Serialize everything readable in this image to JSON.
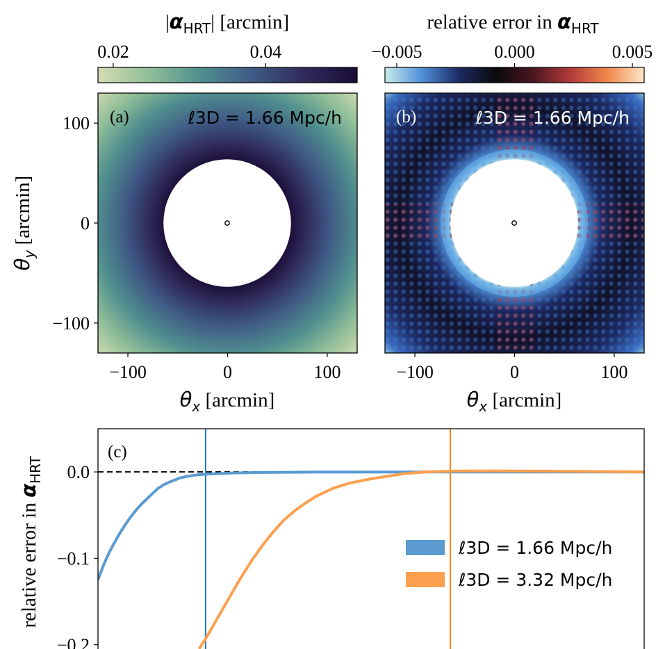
{
  "chart_data": [
    {
      "type": "heatmap",
      "panel_label": "(a)",
      "annotation": "ℓ3D = 1.66 Mpc/h",
      "colorbar": {
        "label_prefix": "|",
        "label_symbol": "α",
        "label_sub": "HRT",
        "label_suffix": "| [arcmin]",
        "ticks": [
          "0.02",
          "0.04"
        ],
        "tick_values": [
          0.02,
          0.04
        ],
        "range": [
          0.018,
          0.052
        ],
        "colors": [
          "#d5dcb2",
          "#8fbe98",
          "#4f8e8e",
          "#3f5a85",
          "#2f2a5a",
          "#1a0d36"
        ]
      },
      "xlabel_symbol": "θ",
      "xlabel_sub": "x",
      "xlabel_unit": "[arcmin]",
      "ylabel_symbol": "θ",
      "ylabel_sub": "y",
      "ylabel_unit": "[arcmin]",
      "xticks": [
        "−100",
        "0",
        "100"
      ],
      "xtick_values": [
        -100,
        0,
        100
      ],
      "yticks": [
        "100",
        "0",
        "−100"
      ],
      "ytick_values": [
        100,
        0,
        -100
      ],
      "xlim": [
        -130,
        130
      ],
      "ylim": [
        -130,
        130
      ],
      "masked_radius_arcmin": 64
    },
    {
      "type": "heatmap",
      "panel_label": "(b)",
      "annotation": "ℓ3D = 1.66 Mpc/h",
      "colorbar": {
        "label": "relative error in",
        "label_symbol": "α",
        "label_sub": "HRT",
        "ticks": [
          "−0.005",
          "0.000",
          "0.005"
        ],
        "tick_values": [
          -0.005,
          0.0,
          0.005
        ],
        "range": [
          -0.0055,
          0.0055
        ],
        "colors": [
          "#c8ecec",
          "#4f8fd8",
          "#1d2a63",
          "#0a0a0a",
          "#4a1620",
          "#b03a3a",
          "#f0874a",
          "#fde6c8"
        ]
      },
      "xlabel_symbol": "θ",
      "xlabel_sub": "x",
      "xlabel_unit": "[arcmin]",
      "xticks": [
        "−100",
        "0",
        "100"
      ],
      "xtick_values": [
        -100,
        0,
        100
      ],
      "xlim": [
        -130,
        130
      ],
      "ylim": [
        -130,
        130
      ],
      "masked_radius_arcmin": 64
    },
    {
      "type": "line",
      "panel_label": "(c)",
      "ylabel_text": "relative error in",
      "ylabel_symbol": "α",
      "ylabel_sub": "HRT",
      "yticks": [
        "0.0",
        "−0.1",
        "−0.2"
      ],
      "ytick_values": [
        0.0,
        -0.1,
        -0.2
      ],
      "ylim": [
        -0.205,
        0.05
      ],
      "xlim": [
        0,
        10
      ],
      "series": [
        {
          "name": "ℓ3D = 1.66 Mpc/h",
          "color": "#5b9bd0",
          "x": [
            0.0,
            0.1,
            0.2,
            0.3,
            0.4,
            0.5,
            0.6,
            0.7,
            0.8,
            0.9,
            1.0,
            1.1,
            1.2,
            1.3,
            1.4,
            1.5,
            1.6,
            1.8,
            2.0,
            2.5,
            3.0,
            4.0,
            6.0,
            10.0
          ],
          "y": [
            -0.125,
            -0.108,
            -0.094,
            -0.082,
            -0.071,
            -0.061,
            -0.052,
            -0.044,
            -0.037,
            -0.031,
            -0.025,
            -0.019,
            -0.015,
            -0.012,
            -0.0095,
            -0.007,
            -0.0055,
            -0.0035,
            -0.0025,
            -0.0012,
            -0.0006,
            -0.0002,
            0.0,
            0.0
          ]
        },
        {
          "name": "ℓ3D = 3.32 Mpc/h",
          "color": "#fca04f",
          "x": [
            1.85,
            2.0,
            2.2,
            2.4,
            2.6,
            2.8,
            3.0,
            3.2,
            3.4,
            3.6,
            3.8,
            4.0,
            4.3,
            4.6,
            5.0,
            5.3,
            5.6,
            6.0,
            6.5,
            7.0,
            8.0,
            9.0,
            10.0
          ],
          "y": [
            -0.205,
            -0.19,
            -0.168,
            -0.146,
            -0.124,
            -0.104,
            -0.086,
            -0.07,
            -0.056,
            -0.045,
            -0.036,
            -0.028,
            -0.019,
            -0.013,
            -0.008,
            -0.005,
            -0.002,
            0.0,
            0.001,
            0.0012,
            0.001,
            0.0005,
            0.0
          ]
        }
      ],
      "vlines": [
        {
          "x": 1.97,
          "color": "#1f77b4"
        },
        {
          "x": 6.45,
          "color": "#ff7f0e"
        }
      ],
      "hline": {
        "y": 0.0,
        "style": "dashed",
        "color": "#000000"
      },
      "legend": [
        "ℓ3D = 1.66 Mpc/h",
        "ℓ3D = 3.32 Mpc/h"
      ],
      "legend_position": "center-right"
    }
  ]
}
